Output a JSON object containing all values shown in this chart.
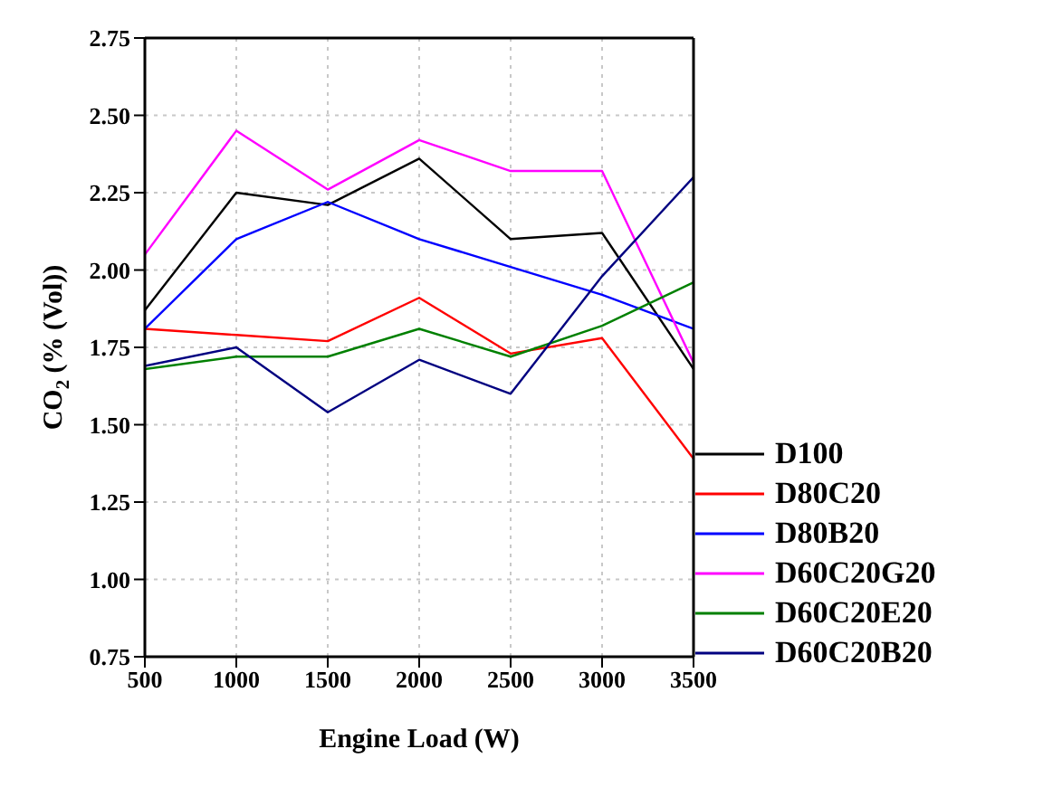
{
  "chart_data": {
    "type": "line",
    "xlabel": "Engine Load (W)",
    "ylabel": "CO$_{2}$ (% (Vol))",
    "x": [
      500,
      1000,
      1500,
      2000,
      2500,
      3000,
      3500
    ],
    "xlim": [
      500,
      3500
    ],
    "xticks": [
      500,
      1000,
      1500,
      2000,
      2500,
      3000,
      3500
    ],
    "ylim": [
      0.75,
      2.75
    ],
    "yticks": [
      {
        "value": 0.75,
        "label": "0.75"
      },
      {
        "value": 1,
        "label": "1.00"
      },
      {
        "value": 1.25,
        "label": "1.25"
      },
      {
        "value": 1.5,
        "label": "1.50"
      },
      {
        "value": 1.75,
        "label": "1.75"
      },
      {
        "value": 2,
        "label": "2.00"
      },
      {
        "value": 2.25,
        "label": "2.25"
      },
      {
        "value": 2.5,
        "label": "2.50"
      },
      {
        "value": 2.75,
        "label": "2.75"
      }
    ],
    "grid": true,
    "legend": "bottom right",
    "marker": "none",
    "line_style": "solid",
    "series": [
      {
        "name": "D100",
        "color": "#000000",
        "values": [
          1.87,
          2.25,
          2.21,
          2.36,
          2.1,
          2.12,
          1.68
        ]
      },
      {
        "name": "D80C20",
        "color": "#ff0000",
        "values": [
          1.81,
          1.79,
          1.77,
          1.91,
          1.73,
          1.78,
          1.39
        ]
      },
      {
        "name": "D80B20",
        "color": "#0000ff",
        "values": [
          1.81,
          2.1,
          2.22,
          2.1,
          2.01,
          1.92,
          1.81
        ]
      },
      {
        "name": "D60C20G20",
        "color": "#ff00ff",
        "values": [
          2.05,
          2.45,
          2.26,
          2.42,
          2.32,
          2.32,
          1.7
        ]
      },
      {
        "name": "D60C20E20",
        "color": "#008000",
        "values": [
          1.68,
          1.72,
          1.72,
          1.81,
          1.72,
          1.82,
          1.96
        ]
      },
      {
        "name": "D60C20B20",
        "color": "#000080",
        "values": [
          1.69,
          1.75,
          1.54,
          1.71,
          1.6,
          1.98,
          2.3
        ]
      }
    ]
  }
}
